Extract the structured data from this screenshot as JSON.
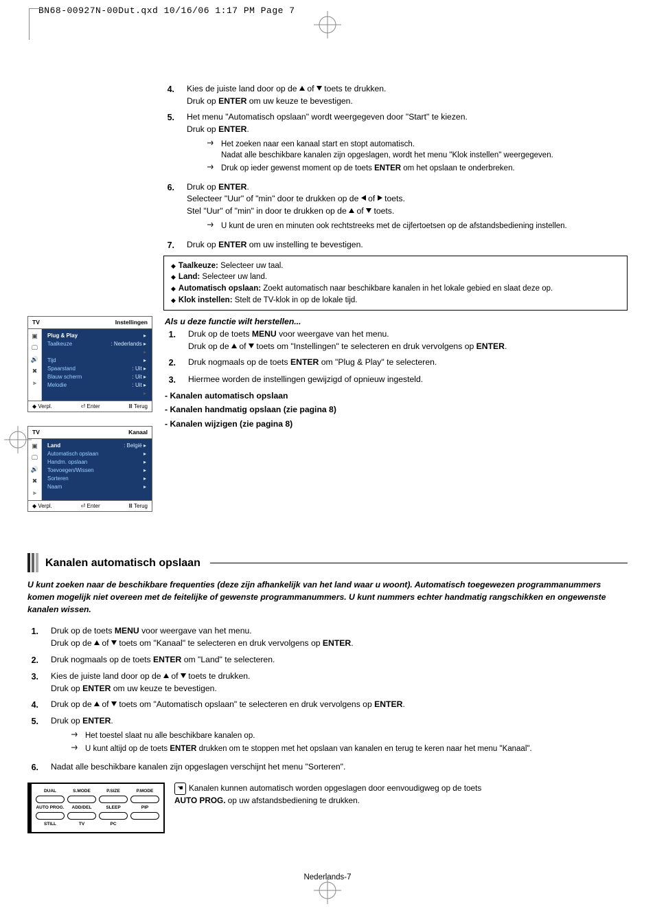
{
  "header_line": "BN68-00927N-00Dut.qxd  10/16/06  1:17 PM  Page 7",
  "steps_a": {
    "4": {
      "l1a": "Kies de juiste land door op de ",
      "l1b": " of ",
      "l1c": " toets te drukken.",
      "l2a": "Druk op ",
      "l2b": "ENTER",
      "l2c": " om uw keuze te bevestigen."
    },
    "5": {
      "l1": "Het menu \"Automatisch opslaan\" wordt weergegeven door \"Start\" te kiezen.",
      "l2a": "Druk op ",
      "l2b": "ENTER",
      "l2c": ".",
      "sub1": "Het zoeken naar een kanaal start en stopt automatisch.",
      "sub1b": "Nadat alle beschikbare kanalen zijn opgeslagen, wordt het menu \"Klok instellen\" weergegeven.",
      "sub2a": "Druk op ieder gewenst moment op de toets ",
      "sub2b": "ENTER",
      "sub2c": " om het opslaan te onderbreken."
    },
    "6": {
      "l1a": "Druk op ",
      "l1b": "ENTER",
      "l1c": ".",
      "l2a": "Selecteer \"Uur\" of \"min\" door te drukken op de ",
      "l2b": " of ",
      "l2c": " toets.",
      "l3a": "Stel \"Uur\" of \"min\" in door te drukken op de ",
      "l3b": " of ",
      "l3c": " toets.",
      "sub": "U kunt de uren en minuten ook rechtstreeks met de cijfertoetsen op de afstandsbediening instellen."
    },
    "7": {
      "l1a": "Druk op ",
      "l1b": "ENTER",
      "l1c": " om uw instelling te bevestigen."
    }
  },
  "box": {
    "a_label": "Taalkeuze:",
    "a_text": " Selecteer uw taal.",
    "b_label": "Land:",
    "b_text": " Selecteer uw land.",
    "c_label": "Automatisch opslaan:",
    "c_text": " Zoekt automatisch naar beschikbare kanalen in het lokale gebied en slaat deze op.",
    "d_label": "Klok instellen:",
    "d_text": " Stelt de TV-klok in op de lokale tijd."
  },
  "restore_heading": "Als u deze functie wilt herstellen...",
  "restore": {
    "1": {
      "l1a": "Druk op de toets ",
      "l1b": "MENU",
      "l1c": " voor weergave van het menu.",
      "l2a": "Druk op de ",
      "l2b": " of ",
      "l2c": " toets om \"Instellingen\" te selecteren en druk vervolgens op ",
      "l2d": "ENTER",
      "l2e": "."
    },
    "2": {
      "l1a": "Druk nogmaals op de toets ",
      "l1b": "ENTER",
      "l1c": " om \"Plug & Play\" te selecteren."
    },
    "3": {
      "l1": "Hiermee worden de instellingen gewijzigd of opnieuw ingesteld."
    }
  },
  "bullets": {
    "a": "Kanalen automatisch opslaan",
    "b": "Kanalen handmatig opslaan (zie pagina 8)",
    "c": "Kanalen wijzigen (zie pagina 8)"
  },
  "osd1": {
    "top_l": "TV",
    "top_r": "Instellingen",
    "rows": [
      {
        "label": "Plug & Play",
        "val": "",
        "hl": true
      },
      {
        "label": "Taalkeuze",
        "val": ": Nederlands"
      },
      {
        "label": "",
        "val": "",
        "dim": true
      },
      {
        "label": "Tijd",
        "val": ""
      },
      {
        "label": "Spaarstand",
        "val": ": Uit"
      },
      {
        "label": "Blauw scherm",
        "val": ": Uit"
      },
      {
        "label": "Melodie",
        "val": ": Uit"
      },
      {
        "label": "",
        "val": "",
        "dim": true
      }
    ],
    "foot_l": "Verpl.",
    "foot_m": "Enter",
    "foot_r": "Terug"
  },
  "osd2": {
    "top_l": "TV",
    "top_r": "Kanaal",
    "rows": [
      {
        "label": "Land",
        "val": ": België",
        "hl": true
      },
      {
        "label": "Automatisch opslaan",
        "val": ""
      },
      {
        "label": "Handm. opslaan",
        "val": ""
      },
      {
        "label": "Toevoegen/Wissen",
        "val": ""
      },
      {
        "label": "Sorteren",
        "val": ""
      },
      {
        "label": "Naam",
        "val": ""
      }
    ],
    "foot_l": "Verpl.",
    "foot_m": "Enter",
    "foot_r": "Terug"
  },
  "section": {
    "title": "Kanalen automatisch opslaan",
    "intro": "U kunt zoeken naar de beschikbare frequenties (deze zijn afhankelijk van het land waar u woont). Automatisch toegewezen programmanummers komen mogelijk niet overeen met de feitelijke of gewenste programmanummers. U kunt nummers echter handmatig rangschikken en ongewenste kanalen wissen.",
    "steps": {
      "1": {
        "l1a": "Druk op de toets ",
        "l1b": "MENU",
        "l1c": " voor weergave van het menu.",
        "l2a": "Druk op de ",
        "l2b": " of ",
        "l2c": " toets om \"Kanaal\" te selecteren en druk vervolgens op ",
        "l2d": "ENTER",
        "l2e": "."
      },
      "2": {
        "l1a": "Druk nogmaals op de toets ",
        "l1b": "ENTER",
        "l1c": " om \"Land\" te selecteren."
      },
      "3": {
        "l1a": "Kies de juiste land door op de ",
        "l1b": " of ",
        "l1c": " toets te drukken.",
        "l2a": "Druk op ",
        "l2b": "ENTER",
        "l2c": " om uw keuze te bevestigen."
      },
      "4": {
        "l1a": "Druk op de ",
        "l1b": " of ",
        "l1c": " toets om \"Automatisch opslaan\" te selecteren en druk vervolgens op ",
        "l1d": "ENTER",
        "l1e": "."
      },
      "5": {
        "l1a": "Druk op ",
        "l1b": "ENTER",
        "l1c": ".",
        "sub1": "Het toestel slaat nu alle beschikbare kanalen op.",
        "sub2a": "U kunt altijd op de toets ",
        "sub2b": "ENTER",
        "sub2c": " drukken om te stoppen met het opslaan van kanalen en terug te keren naar het menu \"Kanaal\"."
      },
      "6": {
        "l1": "Nadat alle beschikbare kanalen zijn opgeslagen verschijnt het menu \"Sorteren\"."
      }
    },
    "tip": {
      "l1": "Kanalen kunnen automatisch worden opgeslagen door eenvoudigweg op de toets",
      "l2a": "AUTO PROG.",
      "l2b": " op uw afstandsbediening te drukken."
    }
  },
  "remote": {
    "labels": [
      "DUAL",
      "S.MODE",
      "P.SIZE",
      "P.MODE",
      "AUTO PROG.",
      "ADD/DEL",
      "SLEEP",
      "PIP",
      "STILL",
      "TV",
      "PC",
      ""
    ]
  },
  "footer": "Nederlands-7",
  "colors": {
    "bar1": "#222222",
    "bar2": "#666666",
    "bar3": "#aaaaaa"
  }
}
